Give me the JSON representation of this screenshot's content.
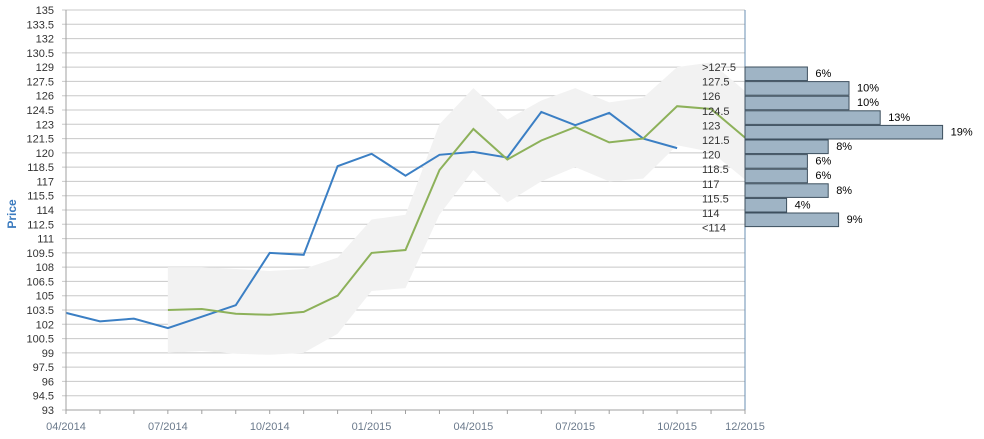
{
  "chart_data": {
    "type": "line",
    "title": "",
    "ylabel": "Price",
    "xlabel": "",
    "ylim": [
      93,
      135
    ],
    "ytick_step": 1.5,
    "x_ticks": [
      "04/2014",
      "07/2014",
      "10/2014",
      "01/2015",
      "04/2015",
      "07/2015",
      "10/2015",
      "12/2015"
    ],
    "grid": true,
    "series": [
      {
        "color": "#3b7fc4",
        "points": [
          [
            "04/2014",
            103.2
          ],
          [
            "05/2014",
            102.3
          ],
          [
            "06/2014",
            102.6
          ],
          [
            "07/2014",
            101.6
          ],
          [
            "08/2014",
            102.8
          ],
          [
            "09/2014",
            104.0
          ],
          [
            "10/2014",
            109.5
          ],
          [
            "11/2014",
            109.3
          ],
          [
            "12/2014",
            118.6
          ],
          [
            "01/2015",
            119.9
          ],
          [
            "02/2015",
            117.6
          ],
          [
            "03/2015",
            119.8
          ],
          [
            "04/2015",
            120.1
          ],
          [
            "05/2015",
            119.5
          ],
          [
            "06/2015",
            124.3
          ],
          [
            "07/2015",
            122.9
          ],
          [
            "08/2015",
            124.2
          ],
          [
            "09/2015",
            121.5
          ],
          [
            "10/2015",
            120.5
          ]
        ]
      },
      {
        "color": "#8db15a",
        "points": [
          [
            "07/2014",
            103.5
          ],
          [
            "08/2014",
            103.6
          ],
          [
            "09/2014",
            103.1
          ],
          [
            "10/2014",
            103.0
          ],
          [
            "11/2014",
            103.3
          ],
          [
            "12/2014",
            105.0
          ],
          [
            "01/2015",
            109.5
          ],
          [
            "02/2015",
            109.8
          ],
          [
            "03/2015",
            118.2
          ],
          [
            "04/2015",
            122.5
          ],
          [
            "05/2015",
            119.3
          ],
          [
            "06/2015",
            121.3
          ],
          [
            "07/2015",
            122.7
          ],
          [
            "08/2015",
            121.1
          ],
          [
            "09/2015",
            121.5
          ],
          [
            "10/2015",
            124.9
          ],
          [
            "11/2015",
            124.6
          ],
          [
            "12/2015",
            121.6
          ]
        ]
      }
    ],
    "band": {
      "color": "#f2f2f2",
      "upper": [
        [
          "07/2014",
          108.0
        ],
        [
          "08/2014",
          108.0
        ],
        [
          "09/2014",
          107.8
        ],
        [
          "10/2014",
          107.6
        ],
        [
          "11/2014",
          107.8
        ],
        [
          "12/2014",
          109.0
        ],
        [
          "01/2015",
          113.0
        ],
        [
          "02/2015",
          113.5
        ],
        [
          "03/2015",
          123.0
        ],
        [
          "04/2015",
          126.8
        ],
        [
          "05/2015",
          123.5
        ],
        [
          "06/2015",
          125.5
        ],
        [
          "07/2015",
          126.8
        ],
        [
          "08/2015",
          125.3
        ],
        [
          "09/2015",
          125.8
        ],
        [
          "10/2015",
          129.0
        ],
        [
          "11/2015",
          129.5
        ],
        [
          "12/2015",
          126.5
        ]
      ],
      "lower": [
        [
          "07/2014",
          99.0
        ],
        [
          "08/2014",
          99.2
        ],
        [
          "09/2014",
          98.9
        ],
        [
          "10/2014",
          98.8
        ],
        [
          "11/2014",
          99.0
        ],
        [
          "12/2014",
          101.0
        ],
        [
          "01/2015",
          105.5
        ],
        [
          "02/2015",
          105.8
        ],
        [
          "03/2015",
          113.5
        ],
        [
          "04/2015",
          118.2
        ],
        [
          "05/2015",
          114.8
        ],
        [
          "06/2015",
          117.0
        ],
        [
          "07/2015",
          118.5
        ],
        [
          "08/2015",
          117.0
        ],
        [
          "09/2015",
          117.3
        ],
        [
          "10/2015",
          120.8
        ],
        [
          "11/2015",
          120.1
        ],
        [
          "12/2015",
          117.2
        ]
      ]
    },
    "histogram": {
      "bins": [
        {
          "label": ">127.5",
          "pct": 6
        },
        {
          "label": "127.5",
          "pct": 10
        },
        {
          "label": "126",
          "pct": 10
        },
        {
          "label": "124.5",
          "pct": 13
        },
        {
          "label": "123",
          "pct": 19
        },
        {
          "label": "121.5",
          "pct": 8
        },
        {
          "label": "120",
          "pct": 6
        },
        {
          "label": "118.5",
          "pct": 6
        },
        {
          "label": "117",
          "pct": 8
        },
        {
          "label": "115.5",
          "pct": 4
        },
        {
          "label": "114",
          "pct": 9
        },
        {
          "label": "<114",
          "pct": null
        }
      ],
      "color": "#9fb4c5",
      "border": "#3d4f5e"
    }
  }
}
